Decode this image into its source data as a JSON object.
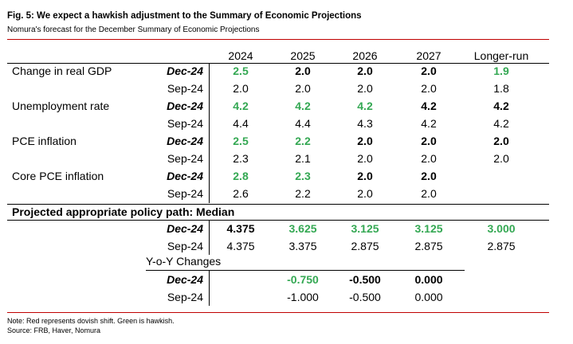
{
  "figure": {
    "title": "Fig. 5: We expect a hawkish adjustment to the Summary of Economic Projections",
    "subtitle": "Nomura's forecast for the December Summary of Economic Projections"
  },
  "colors": {
    "accent_red": "#c00000",
    "hawkish_green": "#34a853",
    "text": "#000000"
  },
  "table": {
    "headers": [
      "2024",
      "2025",
      "2026",
      "2027",
      "Longer-run"
    ],
    "sections": [
      {
        "label": "Change in real GDP",
        "rows": [
          {
            "vintage": "Dec-24",
            "values": [
              "2.5",
              "2.0",
              "2.0",
              "2.0",
              "1.9"
            ]
          },
          {
            "vintage": "Sep-24",
            "values": [
              "2.0",
              "2.0",
              "2.0",
              "2.0",
              "1.8"
            ]
          }
        ]
      },
      {
        "label": "Unemployment rate",
        "rows": [
          {
            "vintage": "Dec-24",
            "values": [
              "4.2",
              "4.2",
              "4.2",
              "4.2",
              "4.2"
            ]
          },
          {
            "vintage": "Sep-24",
            "values": [
              "4.4",
              "4.4",
              "4.3",
              "4.2",
              "4.2"
            ]
          }
        ]
      },
      {
        "label": "PCE inflation",
        "rows": [
          {
            "vintage": "Dec-24",
            "values": [
              "2.5",
              "2.2",
              "2.0",
              "2.0",
              "2.0"
            ]
          },
          {
            "vintage": "Sep-24",
            "values": [
              "2.3",
              "2.1",
              "2.0",
              "2.0",
              "2.0"
            ]
          }
        ]
      },
      {
        "label": "Core PCE inflation",
        "rows": [
          {
            "vintage": "Dec-24",
            "values": [
              "2.8",
              "2.3",
              "2.0",
              "2.0",
              ""
            ]
          },
          {
            "vintage": "Sep-24",
            "values": [
              "2.6",
              "2.2",
              "2.0",
              "2.0",
              ""
            ]
          }
        ]
      }
    ],
    "policy": {
      "title": "Projected appropriate policy path: Median",
      "rows": [
        {
          "vintage": "Dec-24",
          "values": [
            "4.375",
            "3.625",
            "3.125",
            "3.125",
            "3.000"
          ]
        },
        {
          "vintage": "Sep-24",
          "values": [
            "4.375",
            "3.375",
            "2.875",
            "2.875",
            "2.875"
          ]
        }
      ],
      "yoy_title": "Y-o-Y Changes",
      "yoy_rows": [
        {
          "vintage": "Dec-24",
          "values": [
            "",
            "-0.750",
            "-0.500",
            "0.000",
            ""
          ]
        },
        {
          "vintage": "Sep-24",
          "values": [
            "",
            "-1.000",
            "-0.500",
            "0.000",
            ""
          ]
        }
      ]
    }
  },
  "notes": {
    "note": "Note: Red represents dovish shift. Green is hawkish.",
    "source": "Source: FRB, Haver, Nomura"
  }
}
